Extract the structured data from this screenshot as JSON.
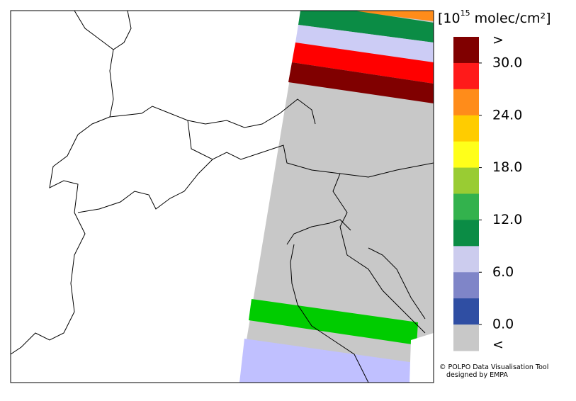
{
  "legend": {
    "unit": {
      "prefix": "[10",
      "exponent": "15",
      "suffix": " molec/cm²]"
    },
    "above_label": ">",
    "below_label": "<",
    "colors": [
      "#800000",
      "#ff1a1a",
      "#ff8c1a",
      "#ffcc00",
      "#ffff1a",
      "#99cc33",
      "#33b24d",
      "#0b8c45",
      "#ccccee",
      "#7f85c8",
      "#2f4ea3",
      "#c8c8c8"
    ],
    "ticks": [
      {
        "value": 30,
        "label": "30.0"
      },
      {
        "value": 24,
        "label": "24.0"
      },
      {
        "value": 18,
        "label": "18.0"
      },
      {
        "value": 12,
        "label": "12.0"
      },
      {
        "value": 6,
        "label": "6.0"
      },
      {
        "value": 0,
        "label": "0.0"
      }
    ]
  },
  "credits": {
    "line1": "© POLPO Data Visualisation Tool",
    "line2": "designed by EMPA"
  }
}
